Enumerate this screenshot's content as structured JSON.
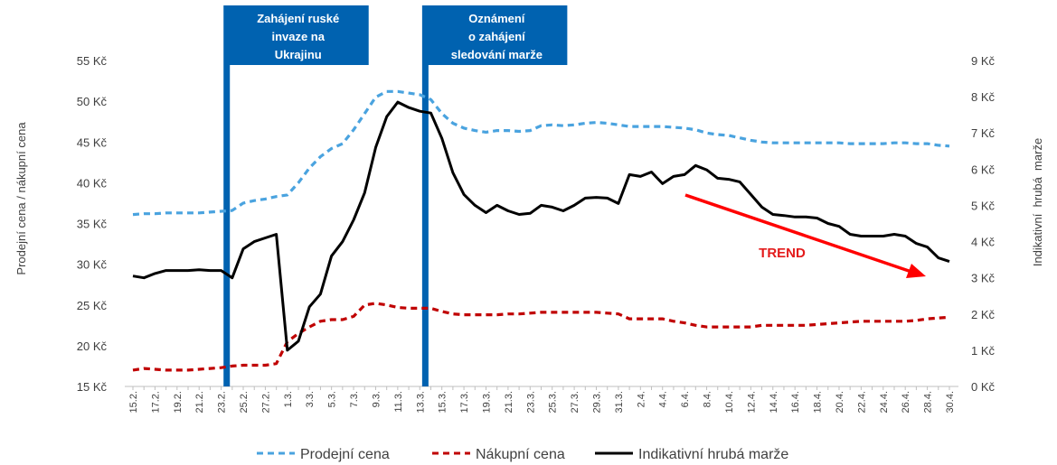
{
  "chart_data": {
    "type": "line",
    "categories": [
      "15.2.",
      "16.2.",
      "17.2.",
      "18.2.",
      "19.2.",
      "20.2.",
      "21.2.",
      "22.2.",
      "23.2.",
      "24.2.",
      "25.2.",
      "26.2.",
      "27.2.",
      "28.2.",
      "1.3.",
      "2.3.",
      "3.3.",
      "4.3.",
      "5.3.",
      "6.3.",
      "7.3.",
      "8.3.",
      "9.3.",
      "10.3.",
      "11.3.",
      "12.3.",
      "13.3.",
      "14.3.",
      "15.3.",
      "16.3.",
      "17.3.",
      "18.3.",
      "19.3.",
      "20.3.",
      "21.3.",
      "22.3.",
      "23.3.",
      "24.3.",
      "25.3.",
      "26.3.",
      "27.3.",
      "28.3.",
      "29.3.",
      "30.3.",
      "31.3.",
      "1.4.",
      "2.4.",
      "3.4.",
      "4.4.",
      "5.4.",
      "6.4.",
      "7.4.",
      "8.4.",
      "9.4.",
      "10.4.",
      "11.4.",
      "12.4.",
      "13.4.",
      "14.4.",
      "15.4.",
      "16.4.",
      "17.4.",
      "18.4.",
      "19.4.",
      "20.4.",
      "21.4.",
      "22.4.",
      "23.4.",
      "24.4.",
      "25.4.",
      "26.4.",
      "27.4.",
      "28.4.",
      "29.4.",
      "30.4."
    ],
    "x_tick_labels": [
      "15.2.",
      "17.2.",
      "19.2.",
      "21.2.",
      "23.2.",
      "25.2.",
      "27.2.",
      "1.3.",
      "3.3.",
      "5.3.",
      "7.3.",
      "9.3.",
      "11.3.",
      "13.3.",
      "15.3.",
      "17.3.",
      "19.3.",
      "21.3.",
      "23.3.",
      "25.3.",
      "27.3.",
      "29.3.",
      "31.3.",
      "2.4.",
      "4.4.",
      "6.4.",
      "8.4.",
      "10.4.",
      "12.4.",
      "14.4.",
      "16.4.",
      "18.4.",
      "20.4.",
      "22.4.",
      "24.4.",
      "26.4.",
      "28.4.",
      "30.4."
    ],
    "y_left": {
      "label": "Prodejní cena / nákupní cena",
      "lim": [
        15,
        55
      ],
      "ticks": [
        "15 Kč",
        "20 Kč",
        "25 Kč",
        "30 Kč",
        "35 Kč",
        "40 Kč",
        "45 Kč",
        "50 Kč",
        "55 Kč"
      ]
    },
    "y_right": {
      "label": "Indikativní  hrubá  marže",
      "lim": [
        0,
        9
      ],
      "ticks": [
        "0 Kč",
        "1 Kč",
        "2 Kč",
        "3 Kč",
        "4 Kč",
        "5 Kč",
        "6 Kč",
        "7 Kč",
        "8 Kč",
        "9 Kč"
      ]
    },
    "series": [
      {
        "name": "Prodejní cena",
        "axis": "left",
        "style": "dashed",
        "color": "#4aa3df",
        "values": [
          36.1,
          36.2,
          36.2,
          36.3,
          36.3,
          36.3,
          36.3,
          36.4,
          36.5,
          36.6,
          37.5,
          37.8,
          38.0,
          38.3,
          38.5,
          40.0,
          41.8,
          43.2,
          44.2,
          44.8,
          46.5,
          48.5,
          50.5,
          51.2,
          51.2,
          51.0,
          50.8,
          50.2,
          48.5,
          47.3,
          46.7,
          46.4,
          46.2,
          46.4,
          46.4,
          46.3,
          46.4,
          47.0,
          47.1,
          47.0,
          47.1,
          47.3,
          47.4,
          47.3,
          47.1,
          46.9,
          46.9,
          46.9,
          46.9,
          46.8,
          46.7,
          46.5,
          46.1,
          45.9,
          45.8,
          45.5,
          45.2,
          45.0,
          44.9,
          44.9,
          44.9,
          44.9,
          44.9,
          44.9,
          44.9,
          44.8,
          44.8,
          44.8,
          44.8,
          44.9,
          44.9,
          44.8,
          44.8,
          44.6,
          44.5
        ]
      },
      {
        "name": "Nákupní cena",
        "axis": "left",
        "style": "dashed",
        "color": "#c00000",
        "values": [
          17.0,
          17.2,
          17.1,
          17.0,
          17.0,
          17.0,
          17.1,
          17.2,
          17.3,
          17.5,
          17.6,
          17.6,
          17.6,
          17.8,
          20.5,
          21.5,
          22.3,
          23.0,
          23.2,
          23.2,
          23.6,
          25.0,
          25.2,
          25.0,
          24.7,
          24.6,
          24.6,
          24.6,
          24.2,
          23.9,
          23.8,
          23.8,
          23.8,
          23.8,
          23.9,
          23.9,
          24.0,
          24.1,
          24.1,
          24.1,
          24.1,
          24.1,
          24.1,
          24.0,
          23.9,
          23.3,
          23.3,
          23.3,
          23.3,
          23.0,
          22.8,
          22.5,
          22.3,
          22.3,
          22.3,
          22.3,
          22.3,
          22.5,
          22.5,
          22.5,
          22.5,
          22.5,
          22.6,
          22.7,
          22.8,
          22.9,
          23.0,
          23.0,
          23.0,
          23.0,
          23.0,
          23.1,
          23.3,
          23.4,
          23.5
        ]
      },
      {
        "name": "Indikativní hrubá marže",
        "axis": "right",
        "style": "solid",
        "color": "#000000",
        "values": [
          3.05,
          3.0,
          3.12,
          3.2,
          3.2,
          3.2,
          3.22,
          3.2,
          3.2,
          3.0,
          3.8,
          4.0,
          4.1,
          4.2,
          1.0,
          1.25,
          2.2,
          2.55,
          3.6,
          4.0,
          4.6,
          5.35,
          6.6,
          7.45,
          7.85,
          7.7,
          7.6,
          7.55,
          6.85,
          5.9,
          5.3,
          5.0,
          4.8,
          5.0,
          4.85,
          4.75,
          4.78,
          5.0,
          4.95,
          4.85,
          5.0,
          5.2,
          5.22,
          5.2,
          5.05,
          5.85,
          5.8,
          5.92,
          5.6,
          5.8,
          5.85,
          6.1,
          5.98,
          5.75,
          5.72,
          5.65,
          5.3,
          4.95,
          4.75,
          4.72,
          4.68,
          4.68,
          4.65,
          4.5,
          4.42,
          4.2,
          4.15,
          4.15,
          4.15,
          4.2,
          4.15,
          3.95,
          3.85,
          3.55,
          3.45
        ]
      }
    ],
    "events": [
      {
        "label_lines": [
          "Zahájení ruské",
          "invaze na",
          "Ukrajinu"
        ],
        "date": "24.2."
      },
      {
        "label_lines": [
          "Oznámení",
          "o zahájení",
          "sledování marže"
        ],
        "date": "14.3."
      }
    ],
    "trend": {
      "label": "TREND",
      "color": "#ff0000"
    },
    "legend": {
      "placement": "bottom"
    },
    "grid": false,
    "colors": {
      "event_box": "#0062b0",
      "event_line": "#0062b0"
    }
  }
}
